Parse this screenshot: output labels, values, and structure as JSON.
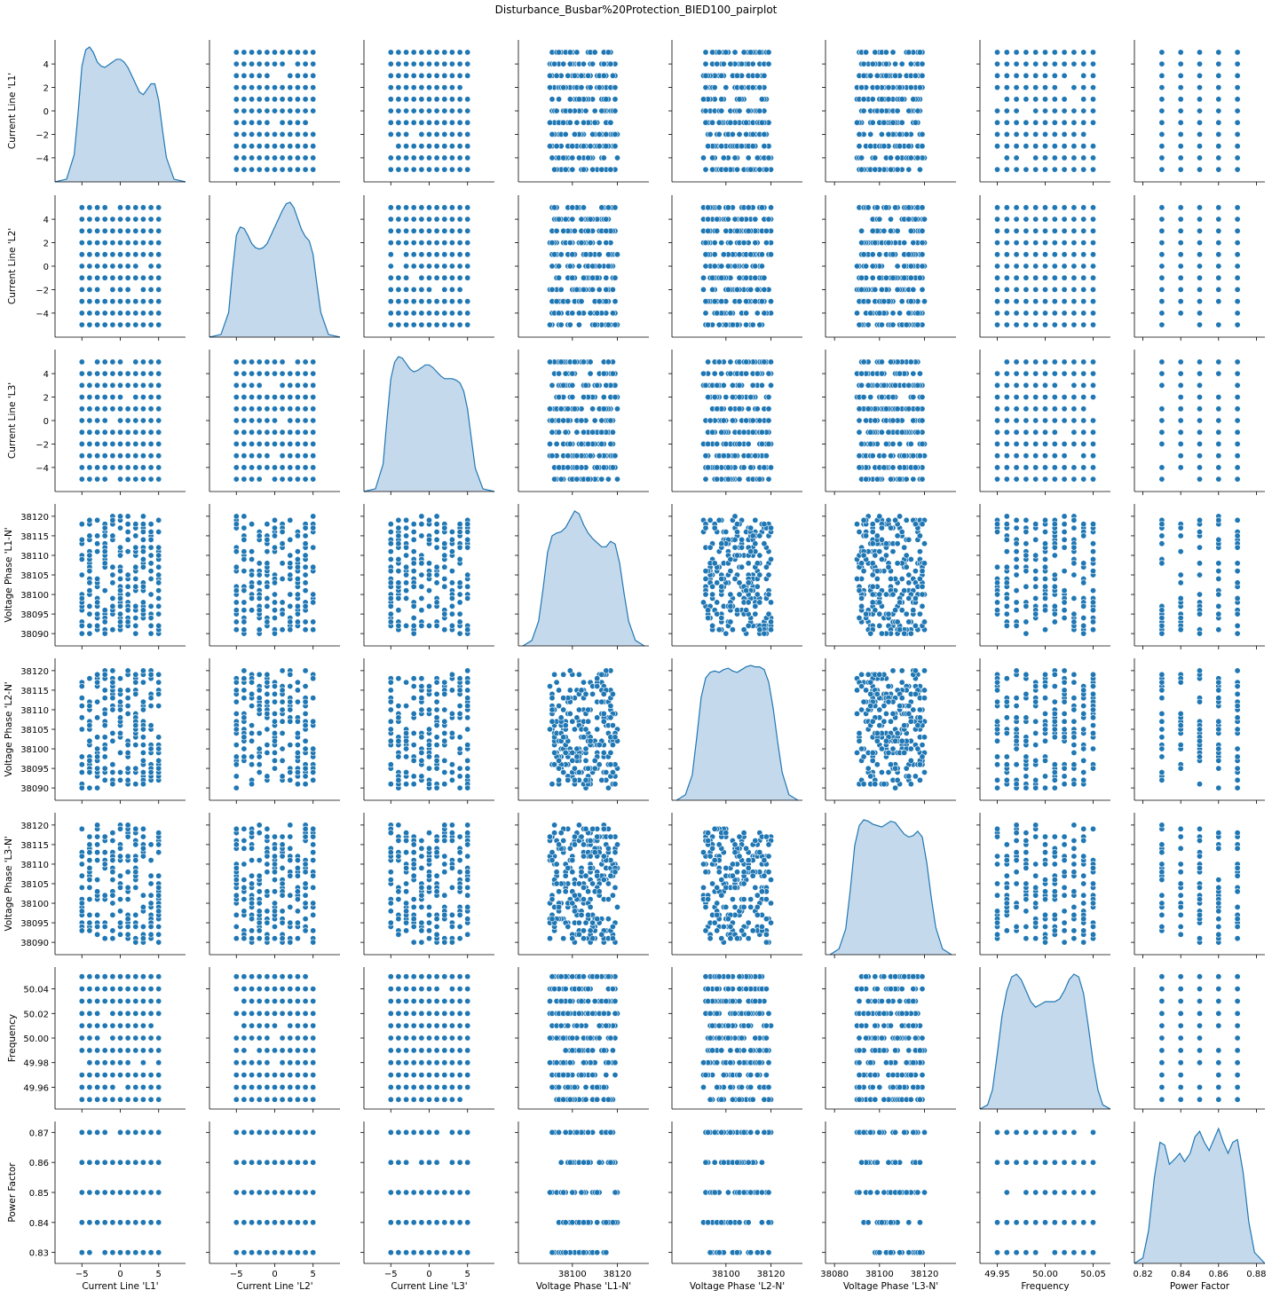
{
  "chart_data": {
    "type": "pairplot",
    "title": "Disturbance_Busbar%20Protection_BIED100_pairplot",
    "marker_color": "#1f77b4",
    "kde_fill_color": "#c5d9ec",
    "kde_line_color": "#1f77b4",
    "variables": [
      {
        "name": "Current Line 'L1'",
        "range": [
          -8.5,
          8.5
        ],
        "ticks": [
          -5,
          0,
          5
        ],
        "ytick_values": [
          -4,
          -2,
          0,
          2,
          4
        ],
        "ytick_labels": [
          "−4",
          "−2",
          "0",
          "2",
          "4"
        ],
        "ytick_range": [
          -5.5,
          5.5
        ],
        "xtick_labels": [
          "−5",
          "0",
          "5"
        ],
        "discrete_values": [
          -5,
          -4,
          -3,
          -2,
          -1,
          0,
          1,
          2,
          3,
          4,
          5
        ],
        "kde": {
          "x": [
            -8.5,
            -7,
            -6,
            -5.5,
            -5,
            -4.5,
            -4,
            -3.5,
            -3,
            -2.5,
            -2,
            -1.5,
            -1,
            -0.5,
            0,
            0.5,
            1,
            1.5,
            2,
            2.5,
            3,
            3.5,
            4,
            4.5,
            5,
            5.5,
            6,
            7,
            8.5
          ],
          "y": [
            0,
            0.02,
            0.2,
            0.5,
            0.85,
            0.97,
            0.99,
            0.95,
            0.88,
            0.85,
            0.84,
            0.86,
            0.88,
            0.9,
            0.9,
            0.88,
            0.84,
            0.78,
            0.72,
            0.66,
            0.64,
            0.68,
            0.72,
            0.72,
            0.6,
            0.38,
            0.18,
            0.02,
            0
          ]
        }
      },
      {
        "name": "Current Line 'L2'",
        "range": [
          -8.5,
          8.5
        ],
        "ticks": [
          -5,
          0,
          5
        ],
        "ytick_values": [
          -4,
          -2,
          0,
          2,
          4
        ],
        "ytick_labels": [
          "−4",
          "−2",
          "0",
          "2",
          "4"
        ],
        "ytick_range": [
          -5.5,
          5.5
        ],
        "xtick_labels": [
          "−5",
          "0",
          "5"
        ],
        "discrete_values": [
          -5,
          -4,
          -3,
          -2,
          -1,
          0,
          1,
          2,
          3,
          4,
          5
        ],
        "kde": {
          "x": [
            -8.5,
            -7,
            -6,
            -5.5,
            -5,
            -4.5,
            -4,
            -3.5,
            -3,
            -2.5,
            -2,
            -1.5,
            -1,
            -0.5,
            0,
            0.5,
            1,
            1.5,
            2,
            2.5,
            3,
            3.5,
            4,
            4.5,
            5,
            5.5,
            6,
            7,
            8.5
          ],
          "y": [
            0,
            0.02,
            0.18,
            0.48,
            0.74,
            0.8,
            0.79,
            0.74,
            0.68,
            0.65,
            0.64,
            0.65,
            0.68,
            0.74,
            0.8,
            0.86,
            0.92,
            0.97,
            0.98,
            0.94,
            0.86,
            0.78,
            0.73,
            0.7,
            0.6,
            0.38,
            0.18,
            0.02,
            0
          ]
        }
      },
      {
        "name": "Current Line 'L3'",
        "range": [
          -8.5,
          8.5
        ],
        "ticks": [
          -5,
          0,
          5
        ],
        "ytick_values": [
          -4,
          -2,
          0,
          2,
          4
        ],
        "ytick_labels": [
          "−4",
          "−2",
          "0",
          "2",
          "4"
        ],
        "ytick_range": [
          -5.5,
          5.5
        ],
        "xtick_labels": [
          "−5",
          "0",
          "5"
        ],
        "discrete_values": [
          -5,
          -4,
          -3,
          -2,
          -1,
          0,
          1,
          2,
          3,
          4,
          5
        ],
        "kde": {
          "x": [
            -8.5,
            -7,
            -6,
            -5.5,
            -5,
            -4.5,
            -4,
            -3.5,
            -3,
            -2.5,
            -2,
            -1.5,
            -1,
            -0.5,
            0,
            0.5,
            1,
            1.5,
            2,
            2.5,
            3,
            3.5,
            4,
            4.5,
            5,
            5.5,
            6,
            7,
            8.5
          ],
          "y": [
            0,
            0.02,
            0.2,
            0.52,
            0.82,
            0.94,
            0.98,
            0.97,
            0.93,
            0.89,
            0.87,
            0.88,
            0.9,
            0.92,
            0.92,
            0.9,
            0.87,
            0.84,
            0.82,
            0.82,
            0.82,
            0.81,
            0.79,
            0.73,
            0.6,
            0.38,
            0.17,
            0.02,
            0
          ]
        }
      },
      {
        "name": "Voltage Phase 'L1-N'",
        "range": [
          38076,
          38134
        ],
        "ticks": [
          38090,
          38095,
          38100,
          38105,
          38110,
          38115,
          38120
        ],
        "ytick_values": [
          38090,
          38095,
          38100,
          38105,
          38110,
          38115,
          38120
        ],
        "ytick_labels": [
          "38090",
          "38095",
          "38100",
          "38105",
          "38110",
          "38115",
          "38120"
        ],
        "ytick_range": [
          38088.5,
          38121.5
        ],
        "xtick_values": [
          38100,
          38120
        ],
        "xtick_labels": [
          "38100",
          "38120"
        ],
        "continuous": [
          38090,
          38120
        ],
        "kde": {
          "x": [
            38078,
            38082,
            38085,
            38087,
            38089,
            38091,
            38093,
            38095,
            38097,
            38099,
            38101,
            38103,
            38105,
            38107,
            38109,
            38111,
            38113,
            38115,
            38117,
            38119,
            38121,
            38123,
            38125,
            38128,
            38132
          ],
          "y": [
            0,
            0.04,
            0.18,
            0.42,
            0.68,
            0.8,
            0.82,
            0.83,
            0.86,
            0.92,
            0.98,
            0.96,
            0.88,
            0.82,
            0.78,
            0.75,
            0.72,
            0.72,
            0.76,
            0.74,
            0.6,
            0.38,
            0.18,
            0.04,
            0
          ]
        }
      },
      {
        "name": "Voltage Phase 'L2-N'",
        "range": [
          38076,
          38134
        ],
        "ticks": [
          38090,
          38095,
          38100,
          38105,
          38110,
          38115,
          38120
        ],
        "ytick_values": [
          38090,
          38095,
          38100,
          38105,
          38110,
          38115,
          38120
        ],
        "ytick_labels": [
          "38090",
          "38095",
          "38100",
          "38105",
          "38110",
          "38115",
          "38120"
        ],
        "ytick_range": [
          38088.5,
          38121.5
        ],
        "xtick_values": [
          38100,
          38120
        ],
        "xtick_labels": [
          "38100",
          "38120"
        ],
        "continuous": [
          38090,
          38120
        ],
        "kde": {
          "x": [
            38078,
            38082,
            38085,
            38087,
            38089,
            38091,
            38093,
            38095,
            38097,
            38099,
            38101,
            38103,
            38105,
            38107,
            38109,
            38111,
            38113,
            38115,
            38117,
            38119,
            38121,
            38123,
            38125,
            38128,
            38132
          ],
          "y": [
            0,
            0.04,
            0.18,
            0.45,
            0.74,
            0.88,
            0.92,
            0.93,
            0.92,
            0.94,
            0.95,
            0.93,
            0.92,
            0.94,
            0.96,
            0.97,
            0.96,
            0.96,
            0.94,
            0.85,
            0.66,
            0.42,
            0.2,
            0.04,
            0
          ]
        }
      },
      {
        "name": "Voltage Phase 'L3-N'",
        "range": [
          38076,
          38134
        ],
        "ticks": [
          38080,
          38100,
          38120
        ],
        "ytick_values": [
          38090,
          38095,
          38100,
          38105,
          38110,
          38115,
          38120
        ],
        "ytick_labels": [
          "38090",
          "38095",
          "38100",
          "38105",
          "38110",
          "38115",
          "38120"
        ],
        "ytick_range": [
          38088.5,
          38121.5
        ],
        "xtick_values": [
          38080,
          38100,
          38120
        ],
        "xtick_labels": [
          "38080",
          "38100",
          "38120"
        ],
        "continuous": [
          38090,
          38120
        ],
        "kde": {
          "x": [
            38078,
            38082,
            38085,
            38087,
            38089,
            38091,
            38093,
            38095,
            38097,
            38099,
            38101,
            38103,
            38105,
            38107,
            38109,
            38111,
            38113,
            38115,
            38117,
            38119,
            38121,
            38123,
            38125,
            38128,
            38132
          ],
          "y": [
            0,
            0.04,
            0.18,
            0.45,
            0.76,
            0.9,
            0.94,
            0.93,
            0.91,
            0.9,
            0.89,
            0.91,
            0.93,
            0.92,
            0.88,
            0.84,
            0.82,
            0.83,
            0.86,
            0.82,
            0.64,
            0.4,
            0.19,
            0.04,
            0
          ]
        }
      },
      {
        "name": "Frequency",
        "range": [
          49.932,
          50.068
        ],
        "ticks": [
          49.95,
          50.0,
          50.05
        ],
        "ytick_values": [
          49.96,
          49.98,
          50.0,
          50.02,
          50.04
        ],
        "ytick_labels": [
          "49.96",
          "49.98",
          "50.00",
          "50.02",
          "50.04"
        ],
        "ytick_range": [
          49.9475,
          50.0525
        ],
        "xtick_values": [
          49.95,
          50.0,
          50.05
        ],
        "xtick_labels": [
          "49.95",
          "50.00",
          "50.05"
        ],
        "discrete_values": [
          49.95,
          49.96,
          49.97,
          49.98,
          49.99,
          50.0,
          50.01,
          50.02,
          50.03,
          50.04,
          50.05
        ],
        "kde": {
          "x": [
            49.932,
            49.94,
            49.945,
            49.95,
            49.955,
            49.96,
            49.965,
            49.97,
            49.975,
            49.98,
            49.985,
            49.99,
            49.995,
            50.0,
            50.005,
            50.01,
            50.015,
            50.02,
            50.025,
            50.03,
            50.035,
            50.04,
            50.045,
            50.05,
            50.055,
            50.06,
            50.068
          ],
          "y": [
            0,
            0.03,
            0.14,
            0.4,
            0.68,
            0.86,
            0.96,
            0.98,
            0.94,
            0.86,
            0.78,
            0.74,
            0.76,
            0.78,
            0.78,
            0.78,
            0.8,
            0.86,
            0.94,
            0.98,
            0.96,
            0.84,
            0.6,
            0.34,
            0.14,
            0.03,
            0
          ]
        }
      },
      {
        "name": "Power Factor",
        "range": [
          0.8155,
          0.8845
        ],
        "ticks": [
          0.82,
          0.84,
          0.86,
          0.88
        ],
        "ytick_values": [
          0.83,
          0.84,
          0.85,
          0.86,
          0.87
        ],
        "ytick_labels": [
          "0.83",
          "0.84",
          "0.85",
          "0.86",
          "0.87"
        ],
        "ytick_range": [
          0.8285,
          0.8715
        ],
        "xtick_values": [
          0.82,
          0.84,
          0.86,
          0.88
        ],
        "xtick_labels": [
          "0.82",
          "0.84",
          "0.86",
          "0.88"
        ],
        "discrete_values": [
          0.83,
          0.84,
          0.85,
          0.86,
          0.87
        ],
        "kde": {
          "x": [
            0.8155,
            0.82,
            0.823,
            0.826,
            0.829,
            0.8315,
            0.834,
            0.837,
            0.8395,
            0.842,
            0.845,
            0.8475,
            0.85,
            0.8525,
            0.855,
            0.8575,
            0.86,
            0.8625,
            0.865,
            0.8675,
            0.87,
            0.873,
            0.876,
            0.879,
            0.8845
          ],
          "y": [
            0,
            0.04,
            0.24,
            0.62,
            0.88,
            0.86,
            0.72,
            0.76,
            0.8,
            0.74,
            0.8,
            0.92,
            0.96,
            0.88,
            0.82,
            0.9,
            0.98,
            0.88,
            0.8,
            0.88,
            0.9,
            0.66,
            0.3,
            0.08,
            0
          ]
        }
      }
    ]
  }
}
